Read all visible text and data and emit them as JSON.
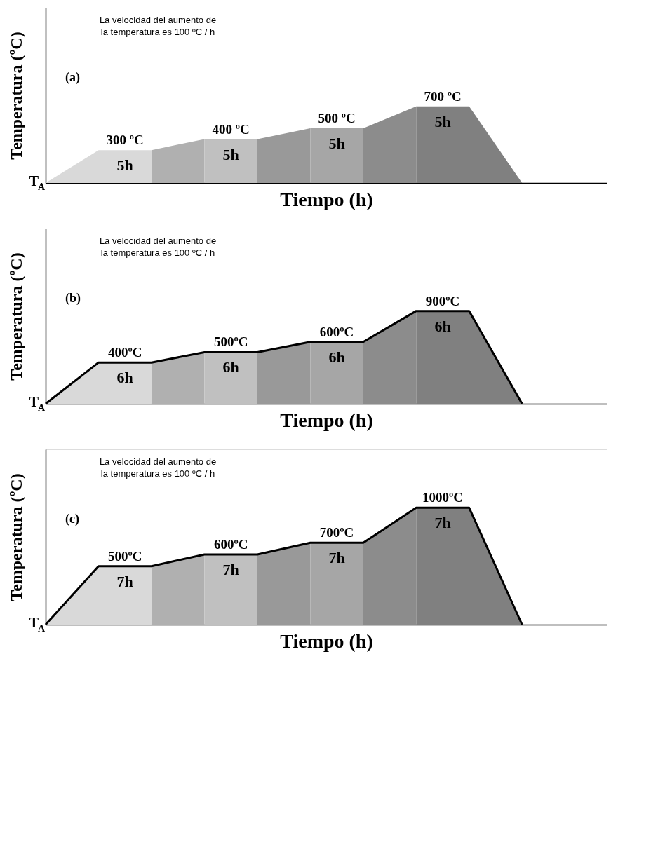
{
  "chart_data": [
    {
      "type": "area",
      "xlabel": "Tiempo (h)",
      "ylabel": "Temperatura (ºC)",
      "ylim": [
        0,
        1600
      ],
      "categories": [
        null,
        null,
        null,
        null,
        null,
        null,
        null,
        null,
        null,
        null
      ],
      "annotations": [
        "La velocidad del aumento de\nla temperatura es 100 ºC / h",
        "(a)",
        "T$_{A}$",
        "5h",
        "5h",
        "5h",
        "5h"
      ],
      "series": [
        {
          "color": "#d9d9d9",
          "values": [
            0,
            300,
            300,
            null,
            null,
            null,
            null,
            null,
            null,
            null
          ],
          "value_labels": [
            null,
            "300 ºC",
            null,
            null,
            null,
            null,
            null,
            null,
            null,
            null
          ]
        },
        {
          "color": "#b0b0b0",
          "values": [
            null,
            null,
            300,
            400,
            null,
            null,
            null,
            null,
            null,
            null
          ]
        },
        {
          "color": "#c0c0c0",
          "values": [
            null,
            null,
            null,
            400,
            400,
            null,
            null,
            null,
            null,
            null
          ],
          "value_labels": [
            null,
            null,
            null,
            "400 ºC",
            null,
            null,
            null,
            null,
            null,
            null
          ]
        },
        {
          "color": "#999999",
          "values": [
            null,
            null,
            null,
            null,
            400,
            500,
            null,
            null,
            null,
            null
          ]
        },
        {
          "color": "#a6a6a6",
          "values": [
            null,
            null,
            null,
            null,
            null,
            500,
            500,
            null,
            null,
            null
          ],
          "value_labels": [
            null,
            null,
            null,
            null,
            null,
            "500 ºC",
            null,
            null,
            null,
            null
          ]
        },
        {
          "color": "#8c8c8c",
          "values": [
            null,
            null,
            null,
            null,
            null,
            null,
            500,
            700,
            null,
            null
          ]
        },
        {
          "color": "#808080",
          "values": [
            null,
            null,
            null,
            null,
            null,
            null,
            null,
            700,
            700,
            0
          ],
          "value_labels": [
            null,
            null,
            null,
            null,
            null,
            null,
            null,
            "700 ºC",
            null,
            null
          ]
        }
      ]
    },
    {
      "type": "area",
      "xlabel": "Tiempo (h)",
      "ylabel": "Temperatura (ºC)",
      "ylim": [
        0,
        1700
      ],
      "categories": [
        null,
        null,
        null,
        null,
        null,
        null,
        null,
        null,
        null,
        null
      ],
      "annotations": [
        "La velocidad del aumento de\nla temperatura es 100 ºC / h",
        "(b)",
        "T$_{A}$",
        "6h",
        "6h",
        "6h",
        "6h"
      ],
      "series": [
        {
          "color": "#d9d9d9",
          "values": [
            0,
            400,
            400,
            null,
            null,
            null,
            null,
            null,
            null,
            null
          ],
          "value_labels": [
            null,
            "400ºC",
            null,
            null,
            null,
            null,
            null,
            null,
            null,
            null
          ]
        },
        {
          "color": "#b0b0b0",
          "values": [
            null,
            null,
            400,
            500,
            null,
            null,
            null,
            null,
            null,
            null
          ]
        },
        {
          "color": "#c0c0c0",
          "values": [
            null,
            null,
            null,
            500,
            500,
            null,
            null,
            null,
            null,
            null
          ],
          "value_labels": [
            null,
            null,
            null,
            "500ºC",
            null,
            null,
            null,
            null,
            null,
            null
          ]
        },
        {
          "color": "#999999",
          "values": [
            null,
            null,
            null,
            null,
            500,
            600,
            null,
            null,
            null,
            null
          ]
        },
        {
          "color": "#a6a6a6",
          "values": [
            null,
            null,
            null,
            null,
            null,
            600,
            600,
            null,
            null,
            null
          ],
          "value_labels": [
            null,
            null,
            null,
            null,
            null,
            "600ºC",
            null,
            null,
            null,
            null
          ]
        },
        {
          "color": "#8c8c8c",
          "values": [
            null,
            null,
            null,
            null,
            null,
            null,
            600,
            900,
            null,
            null
          ]
        },
        {
          "color": "#808080",
          "values": [
            null,
            null,
            null,
            null,
            null,
            null,
            null,
            900,
            900,
            0
          ],
          "value_labels": [
            null,
            null,
            null,
            null,
            null,
            null,
            null,
            "900ºC",
            null,
            null
          ]
        },
        {
          "type": "line",
          "color": "#000000",
          "values": [
            0,
            400,
            400,
            500,
            500,
            600,
            600,
            900,
            900,
            0
          ]
        }
      ]
    },
    {
      "type": "area",
      "xlabel": "Tiempo (h)",
      "ylabel": "Temperatura (ºC)",
      "ylim": [
        0,
        1500
      ],
      "categories": [
        null,
        null,
        null,
        null,
        null,
        null,
        null,
        null,
        null,
        null
      ],
      "annotations": [
        "La velocidad del aumento de\nla temperatura es 100 ºC / h",
        "(c)",
        "T$_{A}$",
        "7h",
        "7h",
        "7h",
        "7h"
      ],
      "series": [
        {
          "color": "#d9d9d9",
          "values": [
            0,
            500,
            500,
            null,
            null,
            null,
            null,
            null,
            null,
            null
          ],
          "value_labels": [
            null,
            "500ºC",
            null,
            null,
            null,
            null,
            null,
            null,
            null,
            null
          ]
        },
        {
          "color": "#b0b0b0",
          "values": [
            null,
            null,
            500,
            600,
            null,
            null,
            null,
            null,
            null,
            null
          ]
        },
        {
          "color": "#c0c0c0",
          "values": [
            null,
            null,
            null,
            600,
            600,
            null,
            null,
            null,
            null,
            null
          ],
          "value_labels": [
            null,
            null,
            null,
            "600ºC",
            null,
            null,
            null,
            null,
            null,
            null
          ]
        },
        {
          "color": "#999999",
          "values": [
            null,
            null,
            null,
            null,
            600,
            700,
            null,
            null,
            null,
            null
          ]
        },
        {
          "color": "#a6a6a6",
          "values": [
            null,
            null,
            null,
            null,
            null,
            700,
            700,
            null,
            null,
            null
          ],
          "value_labels": [
            null,
            null,
            null,
            null,
            null,
            "700ºC",
            null,
            null,
            null,
            null
          ]
        },
        {
          "color": "#8c8c8c",
          "values": [
            null,
            null,
            null,
            null,
            null,
            null,
            700,
            1000,
            null,
            null
          ]
        },
        {
          "color": "#808080",
          "values": [
            null,
            null,
            null,
            null,
            null,
            null,
            null,
            1000,
            1000,
            0
          ],
          "value_labels": [
            null,
            null,
            null,
            null,
            null,
            null,
            null,
            "1000ºC",
            null,
            null
          ]
        },
        {
          "type": "line",
          "color": "#000000",
          "values": [
            0,
            500,
            500,
            600,
            600,
            700,
            700,
            1000,
            1000,
            0
          ]
        }
      ]
    }
  ]
}
